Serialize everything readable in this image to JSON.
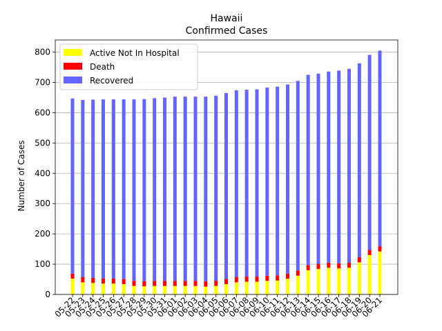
{
  "chart_data": {
    "type": "bar",
    "stacked": true,
    "title": "Hawaii",
    "subtitle": "Confirmed Cases",
    "xlabel": "",
    "ylabel": "Number of Cases",
    "ylim": [
      0,
      840
    ],
    "yticks": [
      0,
      100,
      200,
      300,
      400,
      500,
      600,
      700,
      800
    ],
    "grid": "horizontal",
    "legend_position": "top-left",
    "categories": [
      "05-22",
      "05-23",
      "05-24",
      "05-25",
      "05-26",
      "05-27",
      "05-28",
      "05-29",
      "05-30",
      "05-31",
      "06-01",
      "06-02",
      "06-03",
      "06-04",
      "06-05",
      "06-06",
      "06-07",
      "06-08",
      "06-09",
      "06-10",
      "06-11",
      "06-12",
      "06-13",
      "06-14",
      "06-15",
      "06-16",
      "06-17",
      "06-18",
      "06-19",
      "06-20",
      "06-21"
    ],
    "series": [
      {
        "name": "Active Not In Hospital",
        "color": "#ffff00",
        "values": [
          52,
          40,
          38,
          36,
          36,
          34,
          28,
          27,
          28,
          28,
          28,
          28,
          28,
          26,
          28,
          34,
          40,
          42,
          42,
          45,
          46,
          52,
          62,
          80,
          84,
          88,
          86,
          88,
          106,
          130,
          142
        ]
      },
      {
        "name": "Death",
        "color": "#ff0000",
        "values": [
          17,
          17,
          17,
          17,
          17,
          17,
          17,
          17,
          17,
          17,
          17,
          17,
          17,
          17,
          17,
          17,
          17,
          17,
          17,
          17,
          17,
          17,
          17,
          17,
          17,
          17,
          17,
          17,
          17,
          17,
          17
        ]
      },
      {
        "name": "Recovered",
        "color": "#6464ff",
        "values": [
          578,
          585,
          588,
          591,
          591,
          593,
          599,
          601,
          603,
          605,
          608,
          608,
          608,
          610,
          611,
          614,
          617,
          617,
          618,
          621,
          623,
          624,
          626,
          628,
          628,
          631,
          636,
          640,
          640,
          644,
          646
        ]
      }
    ]
  }
}
